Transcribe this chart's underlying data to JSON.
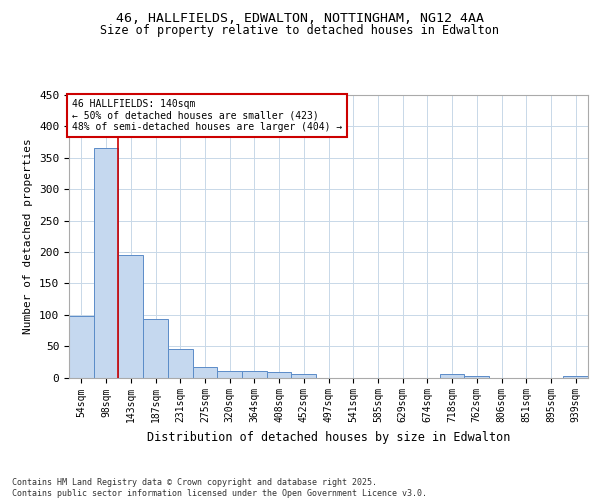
{
  "title1": "46, HALLFIELDS, EDWALTON, NOTTINGHAM, NG12 4AA",
  "title2": "Size of property relative to detached houses in Edwalton",
  "xlabel": "Distribution of detached houses by size in Edwalton",
  "ylabel": "Number of detached properties",
  "categories": [
    "54sqm",
    "98sqm",
    "143sqm",
    "187sqm",
    "231sqm",
    "275sqm",
    "320sqm",
    "364sqm",
    "408sqm",
    "452sqm",
    "497sqm",
    "541sqm",
    "585sqm",
    "629sqm",
    "674sqm",
    "718sqm",
    "762sqm",
    "806sqm",
    "851sqm",
    "895sqm",
    "939sqm"
  ],
  "values": [
    98,
    365,
    195,
    93,
    45,
    16,
    11,
    10,
    8,
    5,
    0,
    0,
    0,
    0,
    0,
    5,
    3,
    0,
    0,
    0,
    2
  ],
  "bar_color": "#c5d8ef",
  "bar_edge_color": "#5b8cc8",
  "vline_color": "#cc0000",
  "vline_pos": 1.5,
  "annotation_text": "46 HALLFIELDS: 140sqm\n← 50% of detached houses are smaller (423)\n48% of semi-detached houses are larger (404) →",
  "annotation_box_color": "#cc0000",
  "ylim": [
    0,
    450
  ],
  "yticks": [
    0,
    50,
    100,
    150,
    200,
    250,
    300,
    350,
    400,
    450
  ],
  "background_color": "#ffffff",
  "grid_color": "#c8d8e8",
  "footer": "Contains HM Land Registry data © Crown copyright and database right 2025.\nContains public sector information licensed under the Open Government Licence v3.0."
}
